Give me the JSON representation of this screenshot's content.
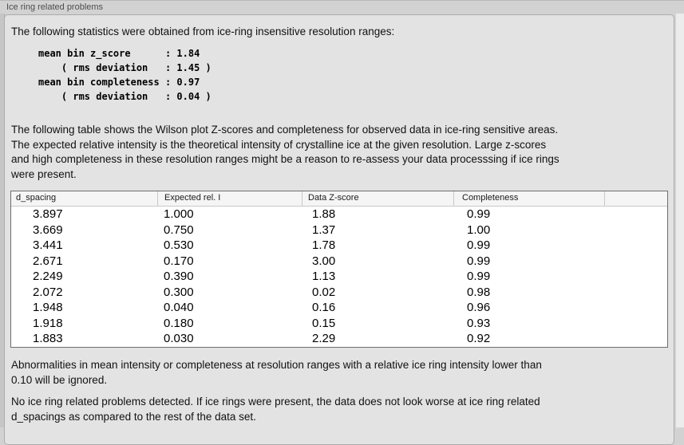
{
  "panel": {
    "title": "Ice ring related problems"
  },
  "intro": {
    "text": "The following statistics were obtained from ice-ring insensitive resolution ranges:"
  },
  "stats": {
    "block": "mean bin z_score      : 1.84\n    ( rms deviation   : 1.45 )\nmean bin completeness : 0.97\n    ( rms deviation   : 0.04 )"
  },
  "table_description": {
    "text": "The following table shows the Wilson plot Z-scores and completeness for observed data in ice-ring sensitive areas.\nThe expected relative intensity is the theoretical intensity of crystalline ice at the given resolution. Large z-scores\nand high completeness in these resolution ranges might be a reason to re-assess your data processsing if ice rings\nwere present."
  },
  "table": {
    "columns": [
      "d_spacing",
      "Expected rel. I",
      "Data Z-score",
      "Completeness",
      ""
    ],
    "rows": [
      [
        "3.897",
        "1.000",
        "1.88",
        "0.99"
      ],
      [
        "3.669",
        "0.750",
        "1.37",
        "1.00"
      ],
      [
        "3.441",
        "0.530",
        "1.78",
        "0.99"
      ],
      [
        "2.671",
        "0.170",
        "3.00",
        "0.99"
      ],
      [
        "2.249",
        "0.390",
        "1.13",
        "0.99"
      ],
      [
        "2.072",
        "0.300",
        "0.02",
        "0.98"
      ],
      [
        "1.948",
        "0.040",
        "0.16",
        "0.96"
      ],
      [
        "1.918",
        "0.180",
        "0.15",
        "0.93"
      ],
      [
        "1.883",
        "0.030",
        "2.29",
        "0.92"
      ]
    ]
  },
  "notes": {
    "threshold": "Abnormalities in mean intensity or completeness at resolution ranges with a relative ice ring intensity lower than\n0.10 will be ignored.",
    "conclusion": "No ice ring related problems detected. If ice rings were present, the data does not look worse at ice ring related\nd_spacings as compared to the rest of the data set."
  },
  "colors": {
    "outer_bg": "#d2d2d2",
    "panel_bg": "#e3e3e3",
    "table_border": "#6e6e6e",
    "table_header_bg": "#f5f5f5"
  }
}
